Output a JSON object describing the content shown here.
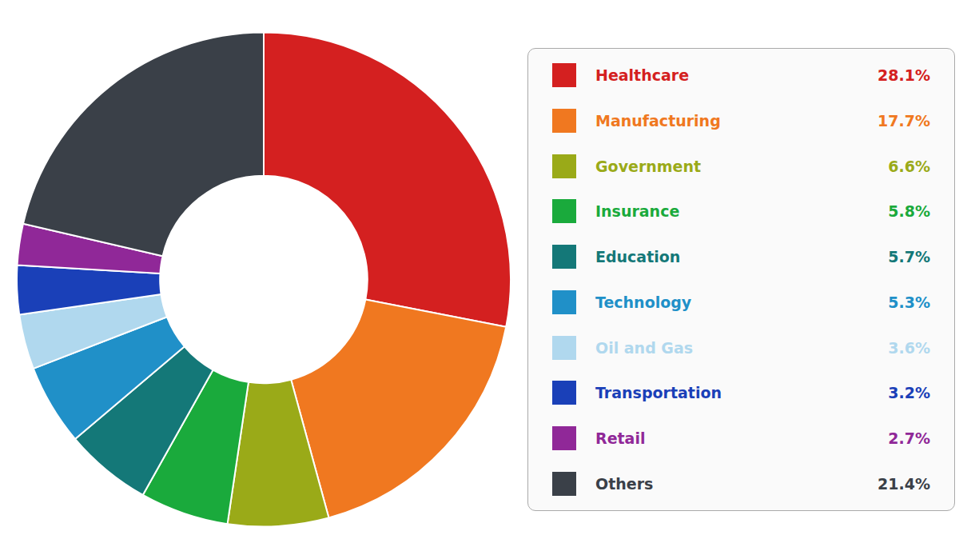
{
  "chart_data": {
    "type": "doughnut",
    "categories": [
      "Healthcare",
      "Manufacturing",
      "Government",
      "Insurance",
      "Education",
      "Technology",
      "Oil and Gas",
      "Transportation",
      "Retail",
      "Others"
    ],
    "values": [
      28.1,
      17.7,
      6.6,
      5.8,
      5.7,
      5.3,
      3.6,
      3.2,
      2.7,
      21.4
    ],
    "value_labels": [
      "28.1%",
      "17.7%",
      "6.6%",
      "5.8%",
      "5.7%",
      "5.3%",
      "3.6%",
      "3.2%",
      "2.7%",
      "21.4%"
    ],
    "colors": [
      "#d42020",
      "#f07820",
      "#9aaa18",
      "#1aaa3c",
      "#147878",
      "#2090c8",
      "#b0d8ee",
      "#1a40b8",
      "#902898",
      "#3a4048"
    ],
    "legend": "right"
  }
}
